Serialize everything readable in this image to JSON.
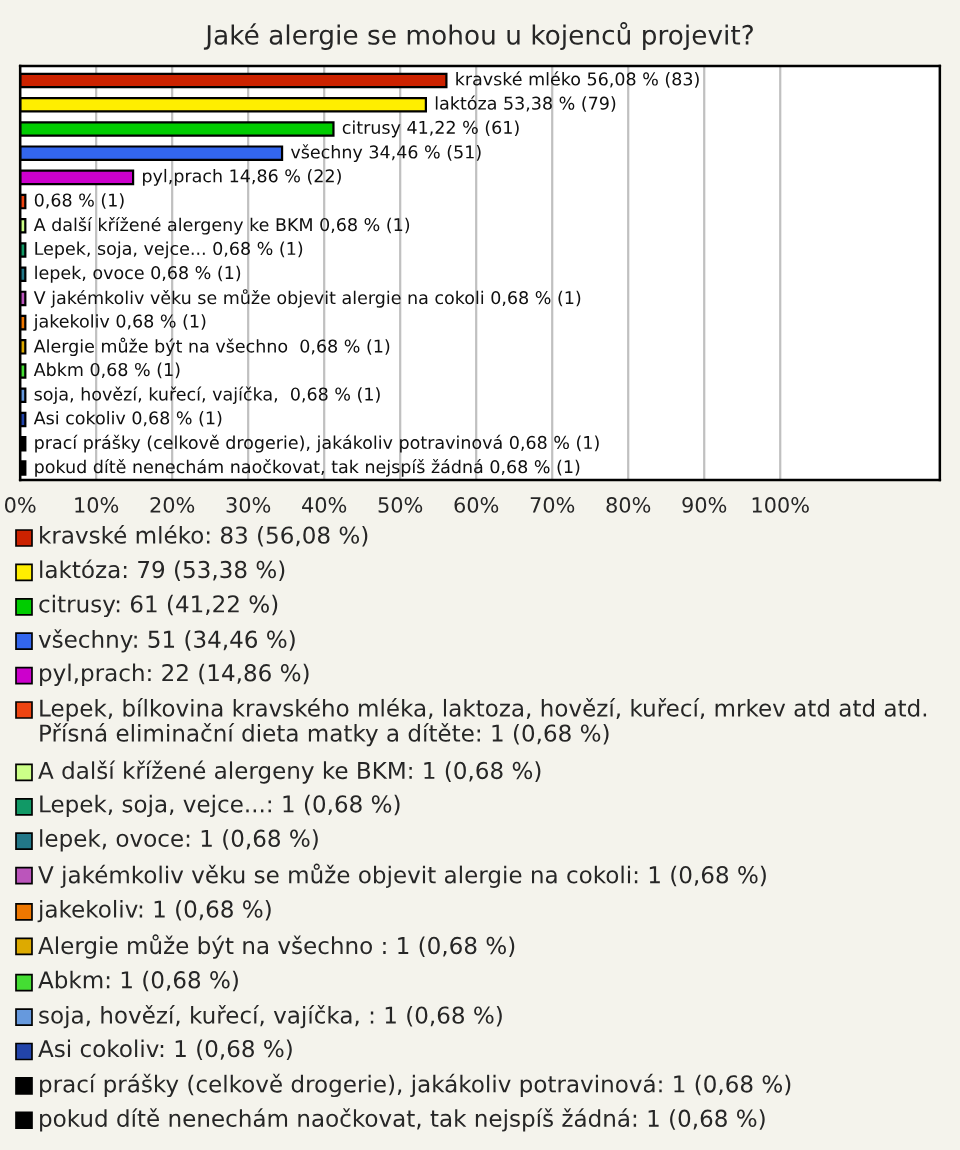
{
  "chart_data": {
    "type": "bar",
    "orientation": "horizontal",
    "title": "Jaké alergie se mohou u kojenců projevit?",
    "categories": [
      null,
      null,
      null,
      null,
      null,
      null,
      null,
      null,
      null,
      null,
      null,
      null,
      null,
      null,
      null,
      null,
      null
    ],
    "annotations": [
      "kravské mléko: 83 (56,08 %)",
      "laktóza: 79 (53,38 %)",
      "citrusy: 61 (41,22 %)",
      "všechny: 51 (34,46 %)",
      "pyl,prach: 22 (14,86 %)",
      "Lepek, bílkovina kravského mléka, laktoza, hovězí, kuřecí, mrkev atd atd atd. Přísná eliminační dieta matky a dítěte: 1 (0,68 %)",
      "A další křížené alergeny ke BKM: 1 (0,68 %)",
      "Lepek, soja, vejce...: 1 (0,68 %)",
      "lepek, ovoce: 1 (0,68 %)",
      "V jakémkoliv věku se může objevit alergie na cokoli: 1 (0,68 %)",
      "jakekoliv: 1 (0,68 %)",
      "Alergie může být na všechno : 1 (0,68 %)",
      "Abkm: 1 (0,68 %)",
      "soja, hovězí, kuřecí, vajíčka, : 1 (0,68 %)",
      "Asi cokoliv: 1 (0,68 %)",
      "prací prášky (celkově drogerie), jakákoliv potravinová: 1 (0,68 %)",
      "pokud dítě nenechám naočkovat, tak nejspíš žádná: 1 (0,68 %)"
    ],
    "values": [
      56.08,
      53.38,
      41.22,
      34.46,
      14.86,
      0.68,
      0.68,
      0.68,
      0.68,
      0.68,
      0.68,
      0.68,
      0.68,
      0.68,
      0.68,
      0.68,
      0.68
    ],
    "value_labels": [
      "kravské mléko 56,08 % (83)",
      "laktóza 53,38 % (79)",
      "citrusy 41,22 % (61)",
      "všechny 34,46 % (51)",
      "pyl,prach 14,86 % (22)",
      "0,68 % (1)",
      "A další křížené alergeny ke BKM 0,68 % (1)",
      "Lepek, soja, vejce... 0,68 % (1)",
      "lepek, ovoce 0,68 % (1)",
      "V jakémkoliv věku se může objevit alergie na cokoli 0,68 % (1)",
      "jakekoliv 0,68 % (1)",
      "Alergie může být na všechno  0,68 % (1)",
      "Abkm 0,68 % (1)",
      "soja, hovězí, kuřecí, vajíčka,  0,68 % (1)",
      "Asi cokoliv 0,68 % (1)",
      "prací prášky (celkově drogerie), jakákoliv potravinová 0,68 % (1)",
      "pokud dítě nenechám naočkovat, tak nejspíš žádná 0,68 % (1)"
    ],
    "colors": [
      "#cc2200",
      "#ffee00",
      "#00cc00",
      "#3366ee",
      "#cc00cc",
      "#ee4411",
      "#ccff88",
      "#119966",
      "#227788",
      "#bb55bb",
      "#ee7700",
      "#ddaa00",
      "#44dd33",
      "#6699dd",
      "#2244aa",
      "#000000",
      "#000000"
    ],
    "xlim": [
      0,
      121
    ],
    "xticks": [
      {
        "value": 0,
        "label": "0%"
      },
      {
        "value": 10,
        "label": "10%"
      },
      {
        "value": 20,
        "label": "20%"
      },
      {
        "value": 30,
        "label": "30%"
      },
      {
        "value": 40,
        "label": "40%"
      },
      {
        "value": 50,
        "label": "50%"
      },
      {
        "value": 60,
        "label": "60%"
      },
      {
        "value": 70,
        "label": "70%"
      },
      {
        "value": 80,
        "label": "80%"
      },
      {
        "value": 90,
        "label": "90%"
      },
      {
        "value": 100,
        "label": "100%"
      }
    ],
    "grid": "x",
    "tick_labels": "x"
  }
}
